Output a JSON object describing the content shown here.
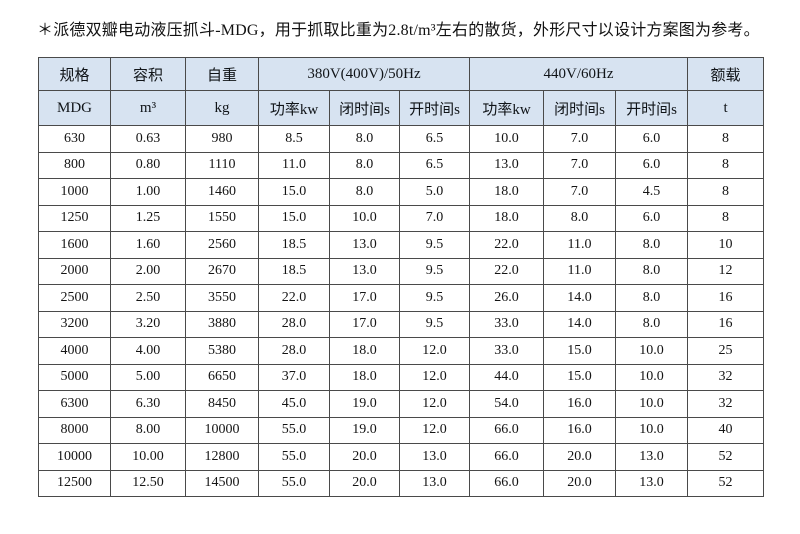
{
  "title": "＊派德双瓣电动液压抓斗-MDG，用于抓取比重为2.8t/m³左右的散货，外形尺寸以设计方案图为参考。",
  "colors": {
    "header_bg": "#d7e3f1",
    "grid_line": "#4a4a4a",
    "text": "#111111",
    "page_bg": "#ffffff"
  },
  "table": {
    "header_row1": {
      "spec": "规格",
      "capacity": "容积",
      "self_weight": "自重",
      "power_group_50hz": "380V(400V)/50Hz",
      "power_group_60hz": "440V/60Hz",
      "rated_load": "额载"
    },
    "header_row2": {
      "spec_unit": "MDG",
      "capacity_unit": "m³",
      "self_weight_unit": "kg",
      "power_50": "功率kw",
      "close_time_50": "闭时间s",
      "open_time_50": "开时间s",
      "power_60": "功率kw",
      "close_time_60": "闭时间s",
      "open_time_60": "开时间s",
      "rated_load_unit": "t"
    },
    "rows": [
      [
        "630",
        "0.63",
        "980",
        "8.5",
        "8.0",
        "6.5",
        "10.0",
        "7.0",
        "6.0",
        "8"
      ],
      [
        "800",
        "0.80",
        "1110",
        "11.0",
        "8.0",
        "6.5",
        "13.0",
        "7.0",
        "6.0",
        "8"
      ],
      [
        "1000",
        "1.00",
        "1460",
        "15.0",
        "8.0",
        "5.0",
        "18.0",
        "7.0",
        "4.5",
        "8"
      ],
      [
        "1250",
        "1.25",
        "1550",
        "15.0",
        "10.0",
        "7.0",
        "18.0",
        "8.0",
        "6.0",
        "8"
      ],
      [
        "1600",
        "1.60",
        "2560",
        "18.5",
        "13.0",
        "9.5",
        "22.0",
        "11.0",
        "8.0",
        "10"
      ],
      [
        "2000",
        "2.00",
        "2670",
        "18.5",
        "13.0",
        "9.5",
        "22.0",
        "11.0",
        "8.0",
        "12"
      ],
      [
        "2500",
        "2.50",
        "3550",
        "22.0",
        "17.0",
        "9.5",
        "26.0",
        "14.0",
        "8.0",
        "16"
      ],
      [
        "3200",
        "3.20",
        "3880",
        "28.0",
        "17.0",
        "9.5",
        "33.0",
        "14.0",
        "8.0",
        "16"
      ],
      [
        "4000",
        "4.00",
        "5380",
        "28.0",
        "18.0",
        "12.0",
        "33.0",
        "15.0",
        "10.0",
        "25"
      ],
      [
        "5000",
        "5.00",
        "6650",
        "37.0",
        "18.0",
        "12.0",
        "44.0",
        "15.0",
        "10.0",
        "32"
      ],
      [
        "6300",
        "6.30",
        "8450",
        "45.0",
        "19.0",
        "12.0",
        "54.0",
        "16.0",
        "10.0",
        "32"
      ],
      [
        "8000",
        "8.00",
        "10000",
        "55.0",
        "19.0",
        "12.0",
        "66.0",
        "16.0",
        "10.0",
        "40"
      ],
      [
        "10000",
        "10.00",
        "12800",
        "55.0",
        "20.0",
        "13.0",
        "66.0",
        "20.0",
        "13.0",
        "52"
      ],
      [
        "12500",
        "12.50",
        "14500",
        "55.0",
        "20.0",
        "13.0",
        "66.0",
        "20.0",
        "13.0",
        "52"
      ]
    ]
  }
}
